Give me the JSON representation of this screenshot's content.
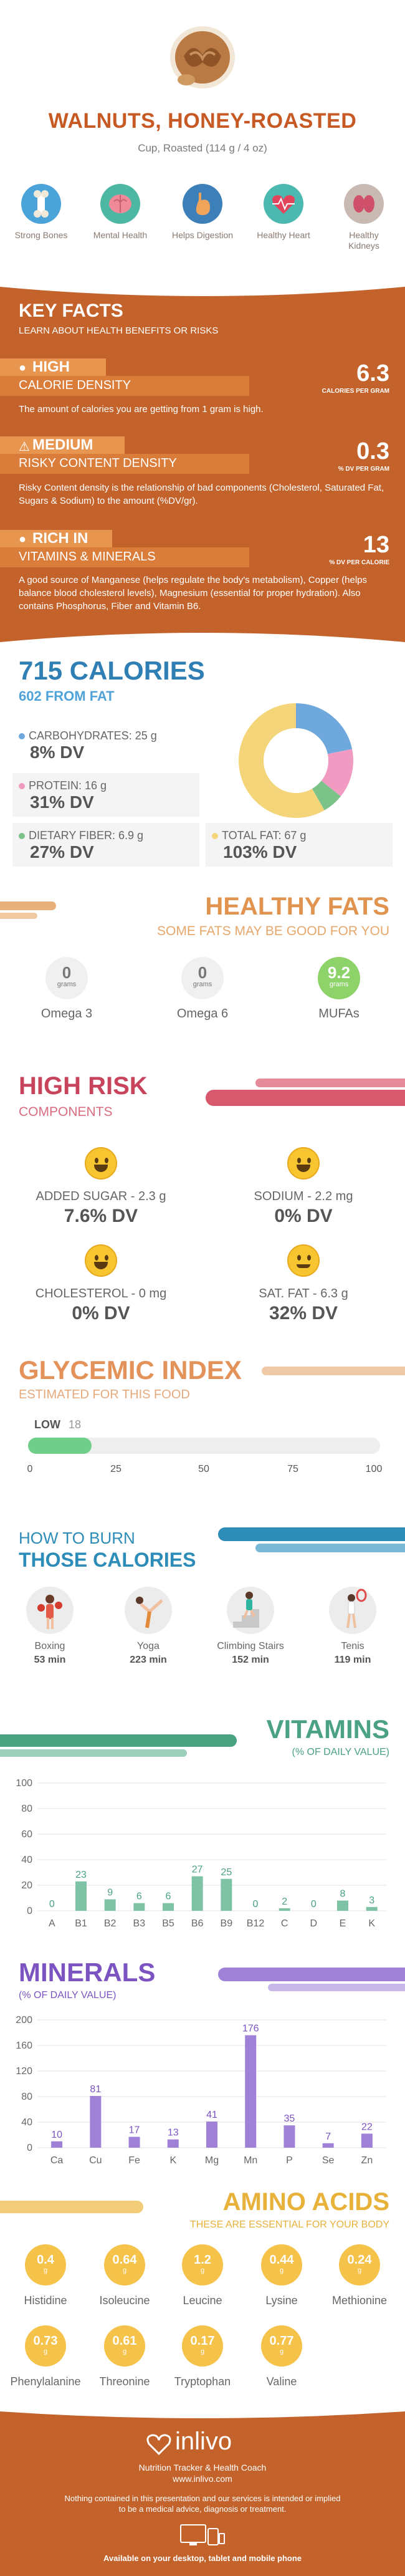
{
  "header": {
    "title": "WALNUTS, HONEY-ROASTED",
    "subtitle": "Cup, Roasted (114 g / 4 oz)",
    "benefits": [
      {
        "label": "Strong Bones",
        "icon": "bone-icon",
        "color": "#4aa3d9"
      },
      {
        "label": "Mental Health",
        "icon": "brain-icon",
        "color": "#4cb8a4"
      },
      {
        "label": "Helps Digestion",
        "icon": "stomach-icon",
        "color": "#3d7fb8"
      },
      {
        "label": "Healthy Heart",
        "icon": "heart-icon",
        "color": "#4bb9b0"
      },
      {
        "label": "Healthy Kidneys",
        "icon": "kidney-icon",
        "color": "#c9b9b3"
      }
    ]
  },
  "key_facts": {
    "title": "KEY FACTS",
    "subtitle": "LEARN ABOUT HEALTH BENEFITS OR RISKS",
    "items": [
      {
        "level": "HIGH",
        "category": "CALORIE DENSITY",
        "value": "6.3",
        "unit": "CALORIES PER GRAM",
        "description": "The amount of calories you are getting from 1 gram is high.",
        "icon": "flame-icon"
      },
      {
        "level": "MEDIUM",
        "category": "RISKY CONTENT DENSITY",
        "value": "0.3",
        "unit": "% DV PER GRAM",
        "description": "Risky Content density is the relationship of bad components (Cholesterol, Saturated Fat, Sugars & Sodium) to the amount (%DV/gr).",
        "icon": "warning-icon"
      },
      {
        "level": "RICH IN",
        "category": "VITAMINS & MINERALS",
        "value": "13",
        "unit": "% DV PER CALORIE",
        "description": "A good source of Manganese (helps regulate the body's metabolism), Copper (helps balance blood cholesterol levels), Magnesium (essential for proper hydration). Also contains Phosphorus, Fiber and Vitamin B6.",
        "icon": "flame-icon"
      }
    ]
  },
  "calories": {
    "title": "715 CALORIES",
    "subtitle": "602 FROM FAT",
    "macros": [
      {
        "label": "CARBOHYDRATES: 25 g",
        "dv": "8% DV",
        "color": "#6fa8dc"
      },
      {
        "label": "PROTEIN: 16 g",
        "dv": "31% DV",
        "color": "#f29bc2"
      },
      {
        "label": "DIETARY FIBER: 6.9 g",
        "dv": "27% DV",
        "color": "#7cc38a"
      },
      {
        "label": "TOTAL FAT: 67 g",
        "dv": "103% DV",
        "color": "#f5d57a"
      }
    ],
    "donut": [
      {
        "name": "carbohydrates",
        "value": 25,
        "color": "#6fa8dc"
      },
      {
        "name": "protein",
        "value": 16,
        "color": "#f29bc2"
      },
      {
        "name": "fiber",
        "value": 6.9,
        "color": "#7cc38a"
      },
      {
        "name": "fat",
        "value": 67,
        "color": "#f5d57a"
      }
    ]
  },
  "healthy_fats": {
    "title": "HEALTHY FATS",
    "subtitle": "SOME FATS MAY BE GOOD FOR YOU",
    "items": [
      {
        "name": "Omega 3",
        "value": "0",
        "unit": "grams",
        "highlight": false
      },
      {
        "name": "Omega 6",
        "value": "0",
        "unit": "grams",
        "highlight": false
      },
      {
        "name": "MUFAs",
        "value": "9.2",
        "unit": "grams",
        "highlight": true
      }
    ]
  },
  "high_risk": {
    "title": "HIGH RISK",
    "subtitle": "COMPONENTS",
    "items": [
      {
        "label": "ADDED SUGAR - 2.3 g",
        "dv": "7.6% DV"
      },
      {
        "label": "SODIUM - 2.2 mg",
        "dv": "0% DV"
      },
      {
        "label": "CHOLESTEROL - 0 mg",
        "dv": "0% DV"
      },
      {
        "label": "SAT. FAT - 6.3 g",
        "dv": "32% DV"
      }
    ]
  },
  "glycemic": {
    "title": "GLYCEMIC INDEX",
    "subtitle": "ESTIMATED FOR THIS FOOD",
    "level": "LOW",
    "value": "18",
    "fill_fraction": 0.18,
    "ticks": [
      "0",
      "25",
      "50",
      "75",
      "100"
    ]
  },
  "burn": {
    "how": "HOW TO BURN",
    "title": "THOSE CALORIES",
    "activities": [
      {
        "name": "Boxing",
        "minutes": "53 min",
        "icon": "boxing-icon"
      },
      {
        "name": "Yoga",
        "minutes": "223 min",
        "icon": "yoga-icon"
      },
      {
        "name": "Climbing Stairs",
        "minutes": "152 min",
        "icon": "stairs-icon"
      },
      {
        "name": "Tenis",
        "minutes": "119 min",
        "icon": "tennis-icon"
      }
    ]
  },
  "vitamins": {
    "title": "VITAMINS",
    "subtitle": "(% OF DAILY VALUE)",
    "chart_data": {
      "type": "bar",
      "categories": [
        "A",
        "B1",
        "B2",
        "B3",
        "B5",
        "B6",
        "B9",
        "B12",
        "C",
        "D",
        "E",
        "K"
      ],
      "values": [
        0,
        23,
        9,
        6,
        6,
        27,
        25,
        0,
        2,
        0,
        8,
        3
      ],
      "labels": [
        "0",
        "23",
        "9",
        "6",
        "6",
        "27",
        "25",
        "0",
        "2",
        "0",
        "8",
        "3"
      ],
      "yticks": [
        "0",
        "20",
        "40",
        "60",
        "80",
        "100"
      ],
      "ylim": [
        0,
        100
      ],
      "color": "#7fc3a6",
      "label_color": "#4aa283"
    }
  },
  "minerals": {
    "title": "MINERALS",
    "subtitle": "(% OF DAILY VALUE)",
    "chart_data": {
      "type": "bar",
      "categories": [
        "Ca",
        "Cu",
        "Fe",
        "K",
        "Mg",
        "Mn",
        "P",
        "Se",
        "Zn"
      ],
      "values": [
        10,
        81,
        17,
        13,
        41,
        176,
        35,
        7,
        22
      ],
      "labels": [
        "10",
        "81",
        "17",
        "13",
        "41",
        "176",
        "35",
        "7",
        "22"
      ],
      "yticks": [
        "0",
        "40",
        "80",
        "120",
        "160",
        "200"
      ],
      "ylim": [
        0,
        200
      ],
      "color": "#9f82d8",
      "label_color": "#7b54c2"
    }
  },
  "amino": {
    "title": "AMINO ACIDS",
    "subtitle": "THESE ARE ESSENTIAL FOR YOUR BODY",
    "items": [
      {
        "name": "Histidine",
        "value": "0.4",
        "unit": "g"
      },
      {
        "name": "Isoleucine",
        "value": "0.64",
        "unit": "g"
      },
      {
        "name": "Leucine",
        "value": "1.2",
        "unit": "g"
      },
      {
        "name": "Lysine",
        "value": "0.44",
        "unit": "g"
      },
      {
        "name": "Methionine",
        "value": "0.24",
        "unit": "g"
      },
      {
        "name": "Phenylalanine",
        "value": "0.73",
        "unit": "g"
      },
      {
        "name": "Threonine",
        "value": "0.61",
        "unit": "g"
      },
      {
        "name": "Tryptophan",
        "value": "0.17",
        "unit": "g"
      },
      {
        "name": "Valine",
        "value": "0.77",
        "unit": "g"
      }
    ]
  },
  "footer": {
    "brand": "inlivo",
    "tagline": "Nutrition Tracker & Health Coach",
    "url": "www.inlivo.com",
    "disclaimer1": "Nothing contained in this presentation and our services is intended or implied",
    "disclaimer2": "to be a medical advice, diagnosis or treatment.",
    "available": "Available on your desktop, tablet and mobile phone"
  }
}
